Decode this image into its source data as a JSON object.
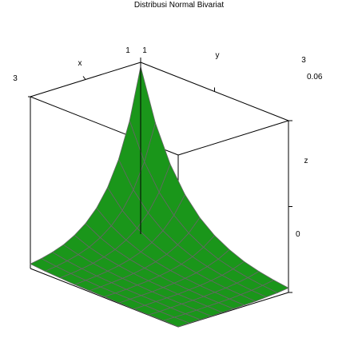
{
  "chart_data": {
    "type": "surface",
    "title": "Distribusi Normal Bivariat",
    "xlabel": "x",
    "ylabel": "y",
    "zlabel": "z",
    "xlim": [
      1,
      3
    ],
    "ylim": [
      1,
      3
    ],
    "zlim": [
      0,
      0.06
    ],
    "tick_labels": {
      "x_min": "1",
      "x_max": "3",
      "y_min": "1",
      "y_max": "3",
      "z_min": "0",
      "z_max": "0.06"
    },
    "surface_color": "#1a961a",
    "grid_line_color": "#666666",
    "surface": {
      "x": [
        1,
        1.2,
        1.4,
        1.6,
        1.8,
        2.0,
        2.2,
        2.4,
        2.6,
        2.8,
        3.0
      ],
      "y": [
        1,
        1.2,
        1.4,
        1.6,
        1.8,
        2.0,
        2.2,
        2.4,
        2.6,
        2.8,
        3.0
      ],
      "z_rows": [
        [
          0.0585,
          0.0408,
          0.0285,
          0.0199,
          0.0139,
          0.0097,
          0.0068,
          0.0047,
          0.0033,
          0.0023,
          0.0016
        ],
        [
          0.0408,
          0.0285,
          0.0199,
          0.0139,
          0.0097,
          0.0068,
          0.0047,
          0.0033,
          0.0023,
          0.0016,
          0.0011
        ],
        [
          0.0285,
          0.0199,
          0.0139,
          0.0097,
          0.0068,
          0.0047,
          0.0033,
          0.0023,
          0.0016,
          0.0011,
          0.0008
        ],
        [
          0.0199,
          0.0139,
          0.0097,
          0.0068,
          0.0047,
          0.0033,
          0.0023,
          0.0016,
          0.0011,
          0.0008,
          0.0005
        ],
        [
          0.0139,
          0.0097,
          0.0068,
          0.0047,
          0.0033,
          0.0023,
          0.0016,
          0.0011,
          0.0008,
          0.0005,
          0.0004
        ],
        [
          0.0097,
          0.0068,
          0.0047,
          0.0033,
          0.0023,
          0.0016,
          0.0011,
          0.0008,
          0.0005,
          0.0004,
          0.0003
        ],
        [
          0.0068,
          0.0047,
          0.0033,
          0.0023,
          0.0016,
          0.0011,
          0.0008,
          0.0005,
          0.0004,
          0.0003,
          0.0002
        ],
        [
          0.0047,
          0.0033,
          0.0023,
          0.0016,
          0.0011,
          0.0008,
          0.0005,
          0.0004,
          0.0003,
          0.0002,
          0.0001
        ],
        [
          0.0033,
          0.0023,
          0.0016,
          0.0011,
          0.0008,
          0.0005,
          0.0004,
          0.0003,
          0.0002,
          0.0001,
          0.0001
        ],
        [
          0.0023,
          0.0016,
          0.0011,
          0.0008,
          0.0005,
          0.0004,
          0.0003,
          0.0002,
          0.0001,
          0.0001,
          0.0001
        ],
        [
          0.0016,
          0.0011,
          0.0008,
          0.0005,
          0.0004,
          0.0003,
          0.0002,
          0.0001,
          0.0001,
          0.0001,
          0.0
        ]
      ]
    }
  }
}
